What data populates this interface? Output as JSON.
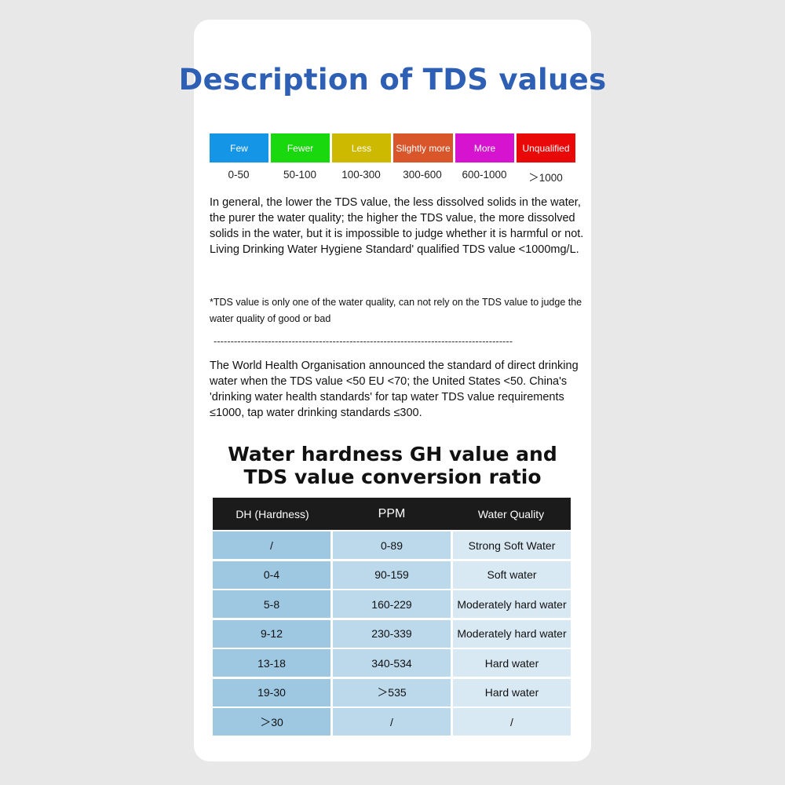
{
  "title": "Description of TDS values",
  "levels": [
    {
      "label": "Few",
      "range": "0-50",
      "color": "#1595e6"
    },
    {
      "label": "Fewer",
      "range": "50-100",
      "color": "#1ad80e"
    },
    {
      "label": "Less",
      "range": "100-300",
      "color": "#cdb900"
    },
    {
      "label": "Slightly more",
      "range": "300-600",
      "color": "#d9552a"
    },
    {
      "label": "More",
      "range": "600-1000",
      "color": "#d614cf"
    },
    {
      "label": "Unqualified",
      "range": "＞1000",
      "color": "#ea0909"
    }
  ],
  "paragraph1": "In general, the lower the TDS value, the less dissolved solids in the water, the purer the water quality; the higher the TDS value, the more dissolved solids in the water, but it is impossible to judge whether it is harmful or not.",
  "paragraph2": "Living Drinking Water Hygiene Standard' qualified TDS value <1000mg/L.",
  "note": "*TDS value is only one of the water quality, can not rely on the TDS value to judge the water quality of good or bad",
  "divider": "----------------------------------------------------------------------------------------",
  "who_paragraph": "The World Health Organisation announced the standard of direct drinking water when the TDS value <50 EU <70; the United States <50. China's 'drinking water health standards' for tap water TDS value requirements ≤1000, tap water drinking standards ≤300.",
  "table_title_line1": "Water hardness GH value and",
  "table_title_line2": "TDS value conversion ratio",
  "table": {
    "headers": [
      "DH (Hardness)",
      "PPM",
      "Water Quality"
    ],
    "rows": [
      [
        "/",
        "0-89",
        "Strong Soft Water"
      ],
      [
        "0-4",
        "90-159",
        "Soft water"
      ],
      [
        "5-8",
        "160-229",
        "Moderately hard water"
      ],
      [
        "9-12",
        "230-339",
        "Moderately hard water"
      ],
      [
        "13-18",
        "340-534",
        "Hard water"
      ],
      [
        "19-30",
        "＞535",
        "Hard water"
      ],
      [
        "＞30",
        "/",
        "/"
      ]
    ]
  }
}
